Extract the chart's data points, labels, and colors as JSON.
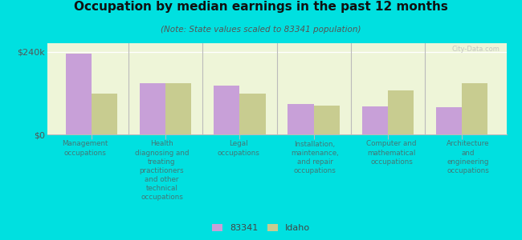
{
  "title": "Occupation by median earnings in the past 12 months",
  "subtitle": "(Note: State values scaled to 83341 population)",
  "categories": [
    "Management\noccupations",
    "Health\ndiagnosing and\ntreating\npractitioners\nand other\ntechnical\noccupations",
    "Legal\noccupations",
    "Installation,\nmaintenance,\nand repair\noccupations",
    "Computer and\nmathematical\noccupations",
    "Architecture\nand\nengineering\noccupations"
  ],
  "values_83341": [
    235000,
    148000,
    142000,
    88000,
    82000,
    80000
  ],
  "values_idaho": [
    118000,
    148000,
    118000,
    83000,
    128000,
    148000
  ],
  "color_83341": "#c8a0d8",
  "color_idaho": "#c8cc90",
  "yticks": [
    0,
    240000
  ],
  "ytick_labels": [
    "$0",
    "$240k"
  ],
  "ylim": [
    0,
    265000
  ],
  "background_color": "#eef5d8",
  "outer_background": "#00e0e0",
  "bar_width": 0.35,
  "legend_label_1": "83341",
  "legend_label_2": "Idaho",
  "watermark": "City-Data.com",
  "cat_labels": [
    "Management\noccupations",
    "Health\ndiagnosing and\ntreating\npractitioners\nand other\ntechnical\noccupations",
    "Legal\noccupations",
    "Installation,\nmaintenance,\nand repair\noccupations",
    "Computer and\nmathematical\noccupations",
    "Architecture\nand\nengineering\noccupations"
  ]
}
